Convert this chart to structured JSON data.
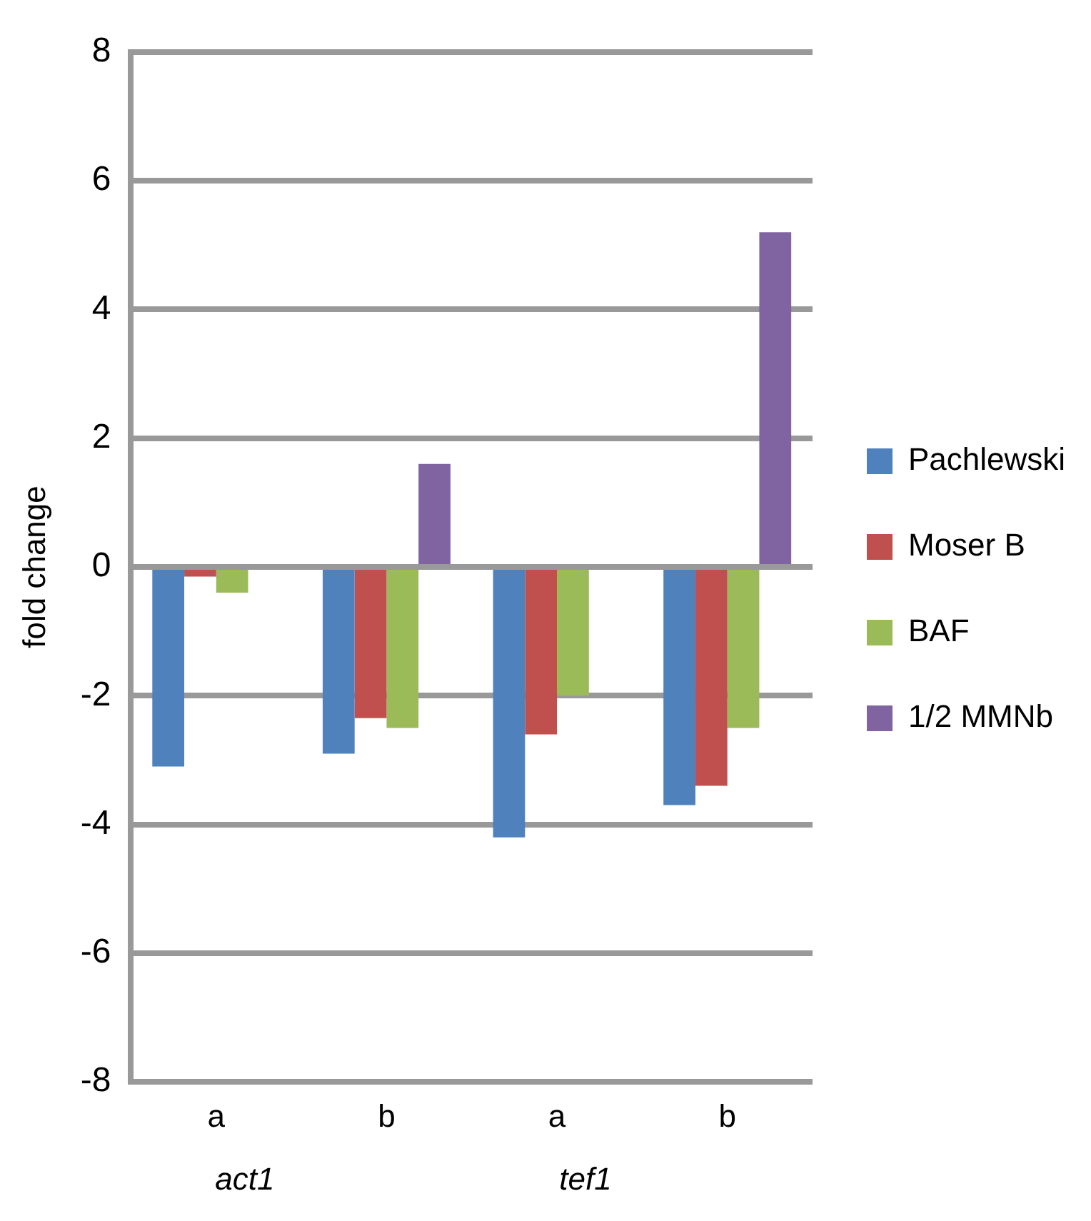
{
  "chart_data": {
    "type": "bar",
    "ylabel": "fold change",
    "categories": [
      "a",
      "b",
      "a",
      "b"
    ],
    "series": [
      {
        "name": "Pachlewski",
        "color": "#4f81bd",
        "values": [
          -3.1,
          -2.9,
          -4.2,
          -3.7
        ]
      },
      {
        "name": "Moser B",
        "color": "#c0504d",
        "values": [
          -0.15,
          -2.35,
          -2.6,
          -3.4
        ]
      },
      {
        "name": "BAF",
        "color": "#9bbb59",
        "values": [
          -0.4,
          -2.5,
          -2.0,
          -2.5
        ]
      },
      {
        "name": "1/2 MMNb",
        "color": "#8064a2",
        "values": [
          null,
          1.6,
          null,
          5.2
        ]
      }
    ],
    "ylim": [
      -8,
      8
    ],
    "yticks": [
      -8,
      -6,
      -4,
      -2,
      0,
      2,
      4,
      6,
      8
    ],
    "grid": "y",
    "legend": "right",
    "annotations": [
      "act1",
      "tef1"
    ]
  }
}
